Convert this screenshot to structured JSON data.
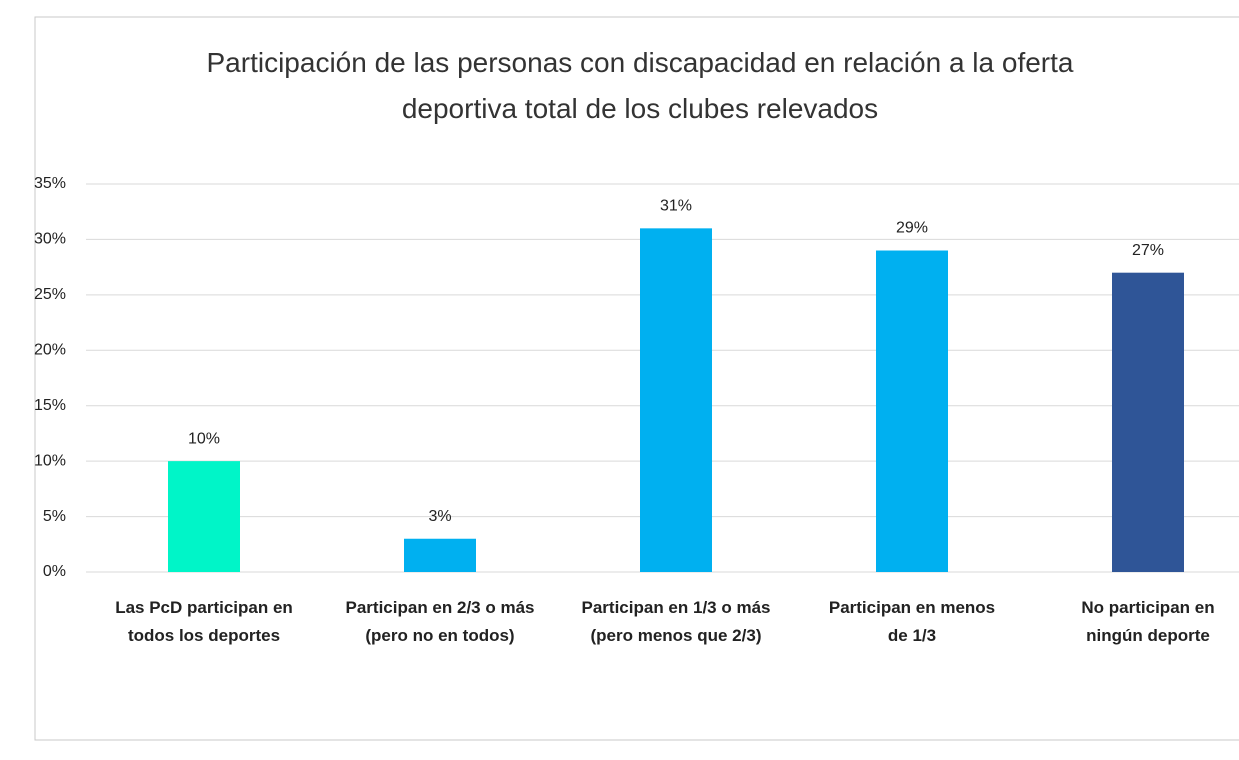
{
  "chart_data": {
    "type": "bar",
    "title": "Participación de las personas con discapacidad en relación a la oferta deportiva total de los clubes relevados",
    "categories": [
      "Las PcD participan en todos los deportes",
      "Participan en 2/3 o más (pero no en todos)",
      "Participan en 1/3 o más (pero menos que 2/3)",
      "Participan en menos de 1/3",
      "No participan en ningún deporte"
    ],
    "values": [
      10,
      3,
      31,
      29,
      27
    ],
    "value_labels": [
      "10%",
      "3%",
      "31%",
      "29%",
      "27%"
    ],
    "colors": [
      "#00f5c8",
      "#00b0f0",
      "#00b0f0",
      "#00b0f0",
      "#2f5597"
    ],
    "ylim": [
      0,
      35
    ],
    "yticks": [
      {
        "value": 0,
        "label": "0%"
      },
      {
        "value": 5,
        "label": "5%"
      },
      {
        "value": 10,
        "label": "10%"
      },
      {
        "value": 15,
        "label": "15%"
      },
      {
        "value": 20,
        "label": "20%"
      },
      {
        "value": 25,
        "label": "25%"
      },
      {
        "value": 30,
        "label": "30%"
      },
      {
        "value": 35,
        "label": "35%"
      }
    ],
    "grid": true
  }
}
